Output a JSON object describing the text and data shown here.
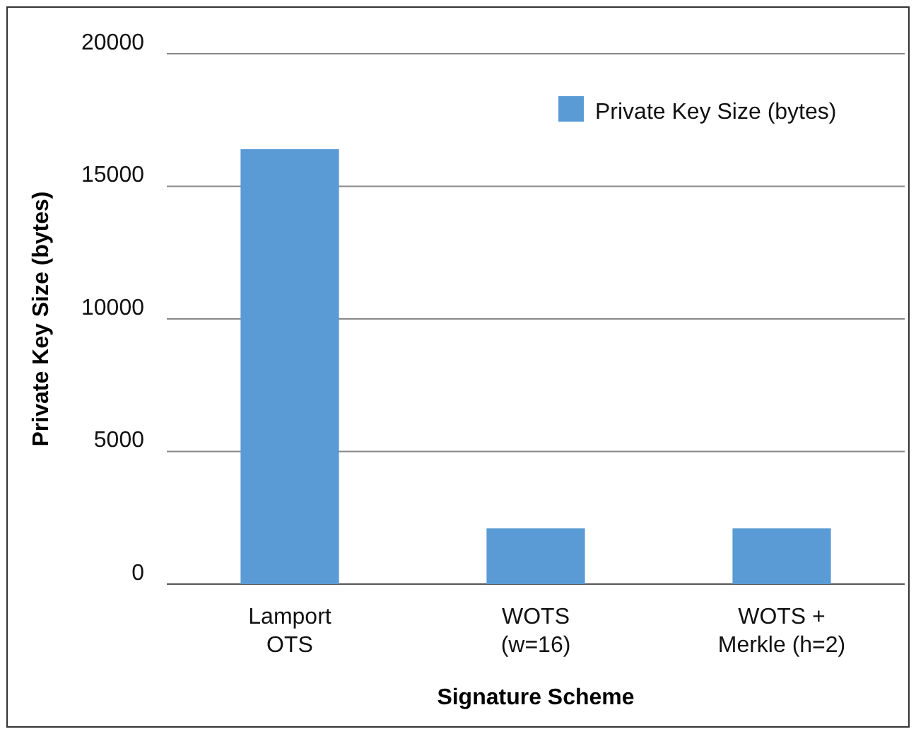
{
  "chart_data": {
    "type": "bar",
    "xlabel": "Signature Scheme",
    "ylabel": "Private Key Size (bytes)",
    "categories": [
      "Lamport\nOTS",
      "WOTS\n(w=16)",
      "WOTS +\nMerkle (h=2)"
    ],
    "series": [
      {
        "name": "Private Key Size (bytes)",
        "color": "#5b9bd5",
        "values": [
          16400,
          2100,
          2100
        ]
      }
    ],
    "ylim": [
      0,
      20000
    ],
    "yticks": [
      0,
      5000,
      10000,
      15000,
      20000
    ],
    "grid": "y",
    "legend": "top right"
  }
}
